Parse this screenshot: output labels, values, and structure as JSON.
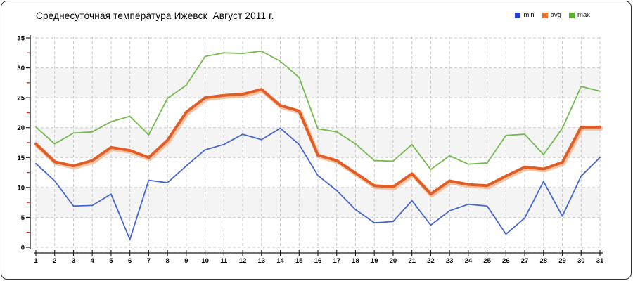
{
  "chart_data": {
    "type": "line",
    "title": "Среднесуточная температура Ижевск  Август 2011 г.",
    "xlabel": "",
    "ylabel": "",
    "x": [
      1,
      2,
      3,
      4,
      5,
      6,
      7,
      8,
      9,
      10,
      11,
      12,
      13,
      14,
      15,
      16,
      17,
      18,
      19,
      20,
      21,
      22,
      23,
      24,
      25,
      26,
      27,
      28,
      29,
      30,
      31
    ],
    "x_tick_labels": [
      "1",
      "2",
      "3",
      "4",
      "5",
      "6",
      "7",
      "8",
      "9",
      "10",
      "11",
      "12",
      "13",
      "14",
      "15",
      "16",
      "17",
      "18",
      "19",
      "20",
      "21",
      "22",
      "23",
      "24",
      "25",
      "26",
      "27",
      "28",
      "29",
      "30",
      "31"
    ],
    "series": [
      {
        "name": "min",
        "color": "#4465d1",
        "line_width": 1.8,
        "values": [
          14.0,
          11.1,
          6.9,
          7.0,
          8.9,
          1.3,
          11.2,
          10.8,
          13.6,
          16.3,
          17.2,
          18.9,
          18.0,
          19.9,
          17.2,
          12.0,
          9.5,
          6.3,
          4.1,
          4.3,
          7.8,
          3.7,
          6.1,
          7.2,
          6.9,
          2.2,
          4.9,
          11.0,
          5.2,
          11.9,
          15.0
        ]
      },
      {
        "name": "avg",
        "color": "#e25d24",
        "halo": "#f3ae83",
        "line_width": 4,
        "values": [
          17.3,
          14.3,
          13.6,
          14.5,
          16.7,
          16.2,
          15.0,
          17.9,
          22.6,
          25.0,
          25.4,
          25.6,
          26.4,
          23.7,
          22.8,
          15.4,
          14.5,
          12.4,
          10.3,
          10.1,
          12.3,
          8.9,
          11.1,
          10.5,
          10.3,
          11.9,
          13.4,
          13.1,
          14.2,
          20.1,
          20.1
        ]
      },
      {
        "name": "max",
        "color": "#74ba4f",
        "line_width": 1.8,
        "values": [
          20.1,
          17.3,
          19.1,
          19.3,
          21.0,
          21.9,
          18.8,
          24.9,
          27.1,
          31.9,
          32.5,
          32.4,
          32.8,
          31.1,
          28.4,
          19.8,
          19.3,
          17.3,
          14.5,
          14.4,
          17.2,
          13.0,
          15.3,
          13.9,
          14.1,
          18.7,
          18.9,
          15.5,
          19.9,
          26.9,
          26.1
        ]
      }
    ],
    "ylim": [
      0,
      35
    ],
    "y_ticks": [
      0,
      5,
      10,
      15,
      20,
      25,
      30,
      35
    ],
    "y_minor_ticks": [
      2.5,
      7.5,
      12.5,
      17.5,
      22.5,
      27.5,
      32.5
    ],
    "grid": true,
    "legend_position": "top-right",
    "band_ranges": [
      [
        5,
        10
      ],
      [
        15,
        20
      ],
      [
        25,
        30
      ]
    ],
    "band_color": "#f4f4f4",
    "grid_color": "#c9c9c9",
    "axis_color": "#1a1a1a",
    "minor_tick_color": "#d42f1f"
  },
  "legend": {
    "items": [
      {
        "label": "min",
        "color": "#2541d0"
      },
      {
        "label": "avg",
        "color": "#e9732f"
      },
      {
        "label": "max",
        "color": "#57b226"
      }
    ]
  }
}
